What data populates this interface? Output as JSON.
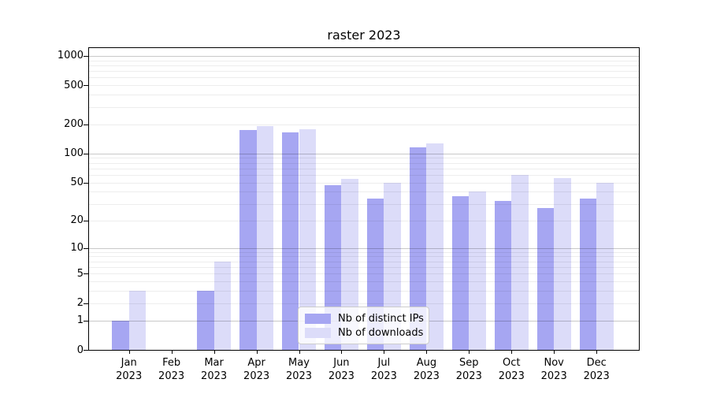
{
  "title": "raster 2023",
  "colors": {
    "ips_bar": "#a6a6f2",
    "downloads_bar": "#dcdcf9",
    "grid_major": "#c9c9c9",
    "grid_minor": "#ededed",
    "spine": "#000000"
  },
  "chart_data": {
    "type": "bar",
    "title": "raster 2023",
    "categories": [
      "Jan 2023",
      "Feb 2023",
      "Mar 2023",
      "Apr 2023",
      "May 2023",
      "Jun 2023",
      "Jul 2023",
      "Aug 2023",
      "Sep 2023",
      "Oct 2023",
      "Nov 2023",
      "Dec 2023"
    ],
    "series": [
      {
        "name": "Nb of distinct IPs",
        "color": "#a6a6f2",
        "values": [
          1,
          0,
          3,
          175,
          165,
          47,
          34,
          115,
          36,
          32,
          27,
          34
        ]
      },
      {
        "name": "Nb of downloads",
        "color": "#dcdcf9",
        "values": [
          3,
          0,
          7,
          190,
          178,
          55,
          50,
          127,
          40,
          60,
          56,
          50
        ]
      }
    ],
    "xlabel": "",
    "ylabel": "",
    "yscale": "log10(value+1)",
    "yticks": [
      0,
      1,
      2,
      5,
      10,
      20,
      50,
      100,
      200,
      500,
      1000
    ],
    "ylim": [
      0,
      1200
    ],
    "grid": "horizontal major and minor, drawn over bars",
    "legend_position": "lower center"
  }
}
